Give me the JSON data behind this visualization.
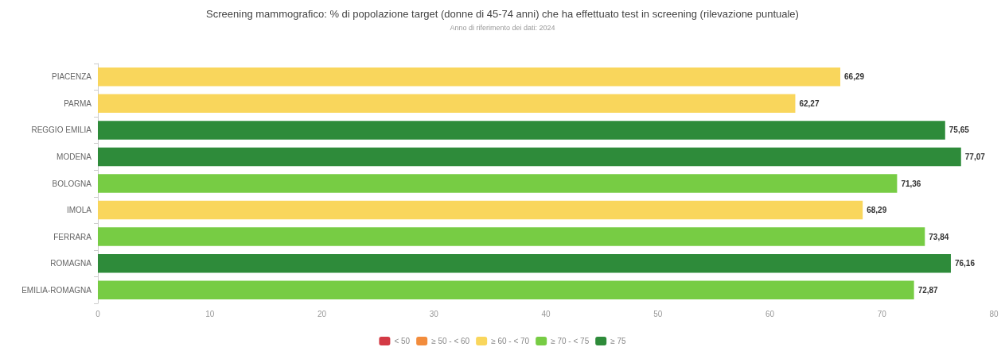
{
  "chart_data": {
    "type": "bar",
    "orientation": "horizontal",
    "stacked": true,
    "title": "Screening mammografico: % di popolazione target (donne di 45-74 anni) che ha effettuato test in screening (rilevazione puntuale)",
    "subtitle": "Anno di riferimento dei dati: 2024",
    "categories": [
      "PIACENZA",
      "PARMA",
      "REGGIO EMILIA",
      "MODENA",
      "BOLOGNA",
      "IMOLA",
      "FERRARA",
      "ROMAGNA",
      "EMILIA-ROMAGNA"
    ],
    "series": [
      {
        "name": "< 50",
        "color": "#d33a45",
        "values": [
          null,
          null,
          null,
          null,
          null,
          null,
          null,
          null,
          null
        ]
      },
      {
        "name": "≥ 50 - < 60",
        "color": "#f28c3c",
        "values": [
          null,
          null,
          null,
          null,
          null,
          null,
          null,
          null,
          null
        ]
      },
      {
        "name": "≥ 60 - < 70",
        "color": "#f9d65c",
        "values": [
          66.29,
          62.27,
          null,
          null,
          null,
          68.29,
          null,
          null,
          null
        ],
        "value_labels": [
          "66,29",
          "62,27",
          null,
          null,
          null,
          "68,29",
          null,
          null,
          null
        ]
      },
      {
        "name": "≥ 70 - < 75",
        "color": "#77cc44",
        "values": [
          null,
          null,
          null,
          null,
          71.36,
          null,
          73.84,
          null,
          72.87
        ],
        "value_labels": [
          null,
          null,
          null,
          null,
          "71,36",
          null,
          "73,84",
          null,
          "72,87"
        ]
      },
      {
        "name": "≥ 75",
        "color": "#2e8b3a",
        "values": [
          null,
          null,
          75.65,
          77.07,
          null,
          null,
          null,
          76.16,
          null
        ],
        "value_labels": [
          null,
          null,
          "75,65",
          "77,07",
          null,
          null,
          null,
          "76,16",
          null
        ]
      }
    ],
    "xlim": [
      0,
      80
    ],
    "xticks": [
      0,
      10,
      20,
      30,
      40,
      50,
      60,
      70,
      80
    ],
    "grid": false,
    "legend": "bottom"
  }
}
